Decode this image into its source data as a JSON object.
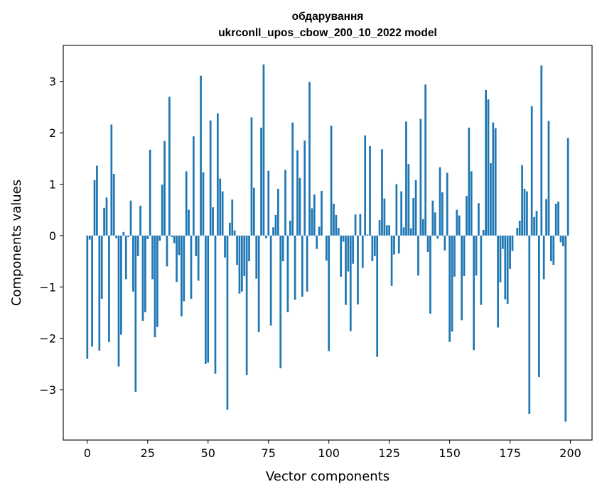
{
  "chart_data": {
    "type": "bar",
    "title": "обдарування",
    "subtitle": "ukrconll_upos_cbow_200_10_2022 model",
    "xlabel": "Vector components",
    "ylabel": "Components values",
    "xlim": [
      -9.95,
      208.95
    ],
    "ylim": [
      -3.98,
      3.7
    ],
    "xticks": [
      0,
      25,
      50,
      75,
      100,
      125,
      150,
      175,
      200
    ],
    "xtick_labels": [
      "0",
      "25",
      "50",
      "75",
      "100",
      "125",
      "150",
      "175",
      "200"
    ],
    "yticks": [
      -3,
      -2,
      -1,
      0,
      1,
      2,
      3
    ],
    "ytick_labels": [
      "−3",
      "−2",
      "−1",
      "0",
      "1",
      "2",
      "3"
    ],
    "grid": false,
    "legend": "none",
    "bar_color": "#1f77b4",
    "values": [
      -2.4,
      -0.08,
      -2.16,
      1.08,
      1.36,
      -2.24,
      -1.23,
      0.54,
      0.74,
      -2.07,
      2.16,
      1.2,
      -0.05,
      -2.55,
      -1.93,
      0.07,
      -0.85,
      -0.03,
      0.68,
      -1.09,
      -3.04,
      -0.4,
      0.58,
      -1.66,
      -1.49,
      -0.07,
      1.67,
      -0.85,
      -1.98,
      -1.78,
      -0.1,
      0.99,
      1.84,
      -0.6,
      2.7,
      -0.03,
      -0.15,
      -0.9,
      -0.38,
      -1.57,
      -1.28,
      1.25,
      0.5,
      -1.23,
      1.93,
      -0.4,
      -0.88,
      3.11,
      1.23,
      -2.5,
      -2.47,
      2.24,
      0.55,
      -2.69,
      2.38,
      1.11,
      0.86,
      -0.43,
      -3.39,
      0.25,
      0.7,
      0.1,
      -0.57,
      -1.13,
      -1.09,
      -0.79,
      -2.71,
      -0.5,
      2.3,
      0.93,
      -0.84,
      -1.88,
      2.1,
      3.33,
      -0.05,
      1.26,
      -1.75,
      0.16,
      0.4,
      0.91,
      -2.58,
      -0.5,
      1.28,
      -1.49,
      0.29,
      2.2,
      -1.25,
      1.66,
      1.12,
      -1.19,
      1.85,
      -1.09,
      2.99,
      0.53,
      0.8,
      -0.26,
      0.17,
      0.87,
      0.0,
      -0.49,
      -2.25,
      2.14,
      0.62,
      0.4,
      0.15,
      -0.8,
      -0.12,
      -1.35,
      -0.7,
      -1.86,
      -0.55,
      0.41,
      -1.34,
      0.42,
      -0.63,
      1.95,
      0.02,
      1.74,
      -0.5,
      -0.4,
      -2.36,
      0.3,
      1.68,
      0.72,
      0.2,
      0.2,
      -0.98,
      -0.37,
      1.0,
      -0.35,
      0.86,
      0.16,
      2.22,
      1.39,
      0.14,
      0.73,
      1.08,
      -0.78,
      2.27,
      0.32,
      2.94,
      -0.32,
      -1.52,
      0.68,
      0.45,
      -0.06,
      1.33,
      0.84,
      -0.29,
      1.22,
      -2.07,
      -1.87,
      -0.8,
      0.5,
      0.39,
      -1.65,
      -0.79,
      0.77,
      2.1,
      1.25,
      -2.23,
      -0.78,
      0.63,
      -1.35,
      0.11,
      2.83,
      2.65,
      1.41,
      2.2,
      2.09,
      -1.79,
      -0.91,
      -0.26,
      -1.24,
      -1.33,
      -0.65,
      -0.3,
      0.0,
      0.15,
      0.29,
      1.37,
      0.91,
      0.86,
      -3.47,
      2.52,
      0.36,
      0.48,
      -2.75,
      3.31,
      -0.85,
      0.71,
      2.23,
      -0.5,
      -0.57,
      0.62,
      0.66,
      -0.13,
      -0.21,
      -3.62,
      1.9
    ]
  }
}
